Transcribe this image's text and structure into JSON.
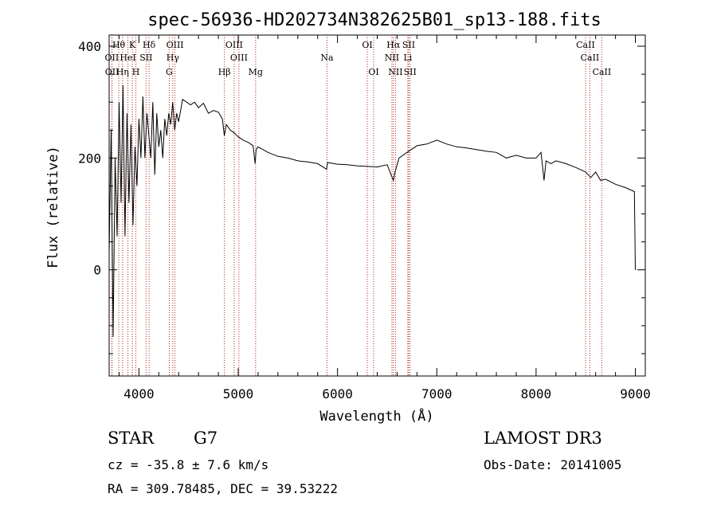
{
  "chart_data": {
    "type": "line",
    "title": "spec-56936-HD202734N382625B01_sp13-188.fits",
    "xlabel": "Wavelength (Å)",
    "ylabel": "Flux (relative)",
    "xlim": [
      3700,
      9100
    ],
    "ylim": [
      -190,
      420
    ],
    "xticks": [
      4000,
      5000,
      6000,
      7000,
      8000,
      9000
    ],
    "yticks": [
      0,
      200,
      400
    ],
    "grid": false,
    "series": [
      {
        "name": "flux",
        "x": [
          3700,
          3720,
          3740,
          3760,
          3780,
          3800,
          3820,
          3840,
          3860,
          3880,
          3900,
          3920,
          3940,
          3960,
          3980,
          4000,
          4020,
          4040,
          4060,
          4080,
          4100,
          4120,
          4140,
          4160,
          4180,
          4200,
          4220,
          4240,
          4260,
          4280,
          4300,
          4320,
          4340,
          4360,
          4380,
          4400,
          4440,
          4480,
          4520,
          4560,
          4600,
          4650,
          4700,
          4750,
          4800,
          4840,
          4860,
          4880,
          4920,
          4960,
          5000,
          5050,
          5100,
          5150,
          5170,
          5180,
          5200,
          5250,
          5300,
          5400,
          5500,
          5600,
          5700,
          5800,
          5890,
          5900,
          6000,
          6100,
          6200,
          6300,
          6400,
          6500,
          6540,
          6563,
          6580,
          6620,
          6700,
          6800,
          6900,
          7000,
          7100,
          7200,
          7300,
          7400,
          7500,
          7600,
          7700,
          7800,
          7900,
          8000,
          8050,
          8080,
          8100,
          8150,
          8200,
          8300,
          8400,
          8500,
          8550,
          8600,
          8650,
          8700,
          8800,
          8900,
          8990,
          9000
        ],
        "values": [
          30,
          250,
          -120,
          200,
          60,
          300,
          120,
          330,
          60,
          280,
          120,
          260,
          80,
          220,
          150,
          270,
          200,
          310,
          200,
          280,
          240,
          200,
          300,
          170,
          280,
          220,
          250,
          200,
          270,
          240,
          280,
          260,
          300,
          250,
          280,
          265,
          305,
          300,
          295,
          300,
          290,
          298,
          280,
          285,
          282,
          270,
          240,
          260,
          250,
          245,
          238,
          232,
          228,
          222,
          190,
          215,
          220,
          215,
          210,
          203,
          200,
          195,
          193,
          190,
          180,
          192,
          189,
          188,
          186,
          185,
          184,
          188,
          170,
          160,
          175,
          200,
          210,
          222,
          225,
          232,
          225,
          220,
          218,
          215,
          212,
          210,
          200,
          205,
          200,
          200,
          210,
          160,
          195,
          190,
          195,
          190,
          183,
          175,
          165,
          175,
          160,
          162,
          153,
          147,
          140,
          0
        ]
      }
    ],
    "lines": [
      {
        "label": "Hθ",
        "wavelength": 3797
      },
      {
        "label": "OII",
        "wavelength": 3727
      },
      {
        "label": "OII",
        "wavelength": 3729
      },
      {
        "label": "HeI",
        "wavelength": 3889
      },
      {
        "label": "Hη",
        "wavelength": 3835
      },
      {
        "label": "K",
        "wavelength": 3934
      },
      {
        "label": "H",
        "wavelength": 3969
      },
      {
        "label": "SII",
        "wavelength": 4072
      },
      {
        "label": "Hδ",
        "wavelength": 4102
      },
      {
        "label": "OIII",
        "wavelength": 4363
      },
      {
        "label": "Hγ",
        "wavelength": 4341
      },
      {
        "label": "G",
        "wavelength": 4305
      },
      {
        "label": "Hβ",
        "wavelength": 4861
      },
      {
        "label": "OIII",
        "wavelength": 4959
      },
      {
        "label": "OIII",
        "wavelength": 5007
      },
      {
        "label": "Mg",
        "wavelength": 5175
      },
      {
        "label": "Na",
        "wavelength": 5894
      },
      {
        "label": "OI",
        "wavelength": 6300
      },
      {
        "label": "OI",
        "wavelength": 6364
      },
      {
        "label": "Hα",
        "wavelength": 6563
      },
      {
        "label": "NII",
        "wavelength": 6548
      },
      {
        "label": "NII",
        "wavelength": 6584
      },
      {
        "label": "SII",
        "wavelength": 6717
      },
      {
        "label": "SII",
        "wavelength": 6731
      },
      {
        "label": "Li",
        "wavelength": 6708
      },
      {
        "label": "CaII",
        "wavelength": 8498
      },
      {
        "label": "CaII",
        "wavelength": 8542
      },
      {
        "label": "CaII",
        "wavelength": 8662
      }
    ]
  },
  "info": {
    "class": "STAR",
    "subclass": "G7",
    "survey": "LAMOST DR3",
    "velocity": "cz = -35.8 ± 7.6 km/s",
    "obs_date": "Obs-Date: 20141005",
    "coords": "RA = 309.78485, DEC =  39.53222"
  },
  "colors": {
    "line_marker": "#b22222",
    "spectrum": "#000000"
  }
}
